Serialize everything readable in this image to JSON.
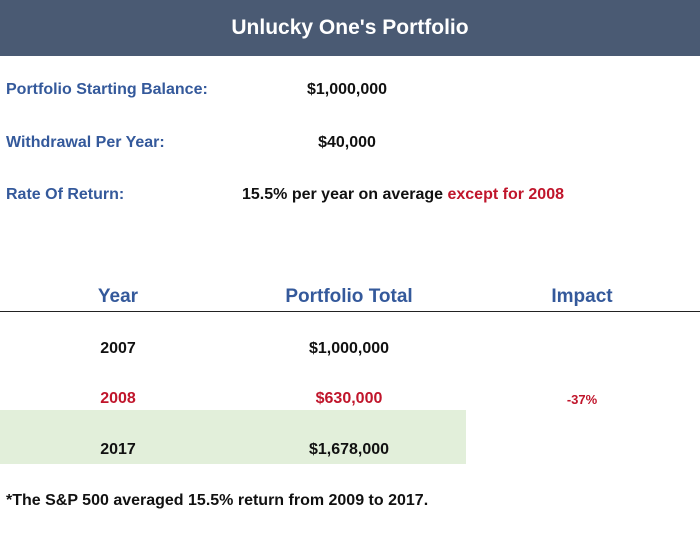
{
  "title": "Unlucky One's Portfolio",
  "summary": {
    "starting_balance_label": "Portfolio Starting Balance:",
    "starting_balance_value": "$1,000,000",
    "withdrawal_label": "Withdrawal Per Year:",
    "withdrawal_value": "$40,000",
    "return_label": "Rate Of Return:",
    "return_value": "15.5% per year on average",
    "return_exception": "except for 2008"
  },
  "table": {
    "headers": {
      "year": "Year",
      "total": "Portfolio Total",
      "impact": "Impact"
    },
    "rows": [
      {
        "year": "2007",
        "total": "$1,000,000",
        "impact": ""
      },
      {
        "year": "2008",
        "total": "$630,000",
        "impact": "-37%"
      },
      {
        "year": "2017",
        "total": "$1,678,000",
        "impact": ""
      }
    ]
  },
  "footnote": "*The S&P 500 averaged 15.5% return from 2009 to 2017.",
  "colors": {
    "title_bg": "#4a5a73",
    "label_blue": "#34599b",
    "accent_red": "#c0152b",
    "highlight_green": "#e2efda"
  }
}
